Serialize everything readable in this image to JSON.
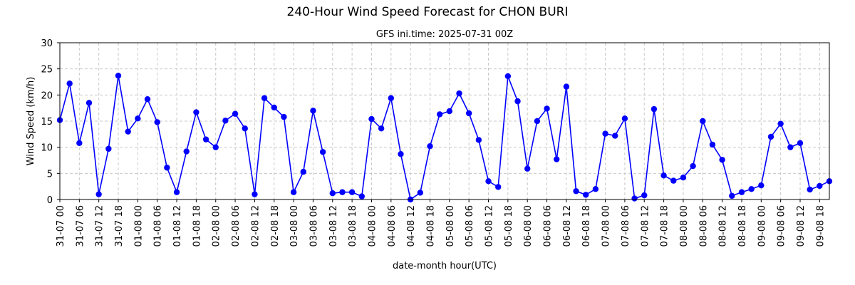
{
  "chart_data": {
    "type": "line",
    "title": "240-Hour Wind Speed Forecast for CHON BURI",
    "subtitle": "GFS ini.time: 2025-07-31 00Z",
    "xlabel": "date-month hour(UTC)",
    "ylabel": "Wind Speed (km/h)",
    "ylim": [
      0,
      30
    ],
    "yticks": [
      0,
      5,
      10,
      15,
      20,
      25,
      30
    ],
    "x_step_hours": 3,
    "x_tick_every": 2,
    "grid": true,
    "x_tick_labels": [
      "31-07 00",
      "31-07 06",
      "31-07 12",
      "31-07 18",
      "01-08 00",
      "01-08 06",
      "01-08 12",
      "01-08 18",
      "02-08 00",
      "02-08 06",
      "02-08 12",
      "02-08 18",
      "03-08 00",
      "03-08 06",
      "03-08 12",
      "03-08 18",
      "04-08 00",
      "04-08 06",
      "04-08 12",
      "04-08 18",
      "05-08 00",
      "05-08 06",
      "05-08 12",
      "05-08 18",
      "06-08 00",
      "06-08 06",
      "06-08 12",
      "06-08 18",
      "07-08 00",
      "07-08 06",
      "07-08 12",
      "07-08 18",
      "08-08 00",
      "08-08 06",
      "08-08 12",
      "08-08 18",
      "09-08 00",
      "09-08 06",
      "09-08 12",
      "09-08 18"
    ],
    "series": [
      {
        "color": "#0000ff",
        "values": [
          15.2,
          22.2,
          10.8,
          18.5,
          1.0,
          9.7,
          23.7,
          13.0,
          15.5,
          19.2,
          14.8,
          6.1,
          1.4,
          9.2,
          16.7,
          11.5,
          10.0,
          15.1,
          16.4,
          13.6,
          1.0,
          19.4,
          17.6,
          15.8,
          1.4,
          5.3,
          17.0,
          9.1,
          1.2,
          1.4,
          1.4,
          0.6,
          15.4,
          13.6,
          19.4,
          8.7,
          0.0,
          1.3,
          10.2,
          16.3,
          16.9,
          20.3,
          16.5,
          11.4,
          3.5,
          2.4,
          23.6,
          18.8,
          5.9,
          15.0,
          17.4,
          7.7,
          21.6,
          1.6,
          0.9,
          2.0,
          12.6,
          12.2,
          15.5,
          0.2,
          0.8,
          17.3,
          4.6,
          3.6,
          4.2,
          6.4,
          15.0,
          10.5,
          7.6,
          0.7,
          1.4,
          2.0,
          2.7,
          12.0,
          14.5,
          10.0,
          10.8,
          1.9,
          2.6,
          3.5
        ]
      }
    ]
  }
}
